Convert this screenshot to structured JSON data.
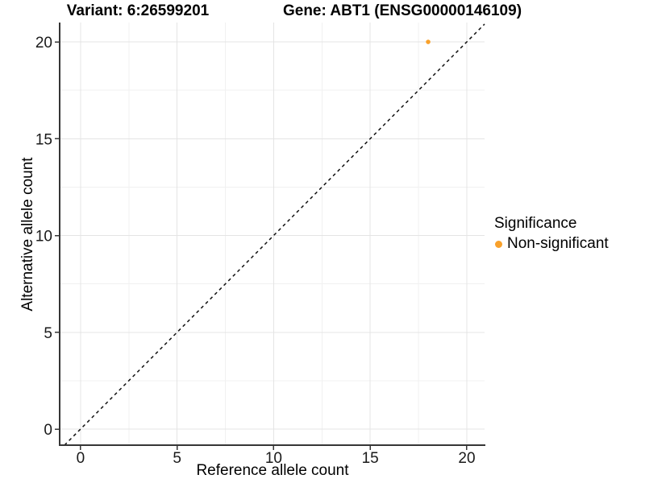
{
  "chart_data": {
    "type": "scatter",
    "title_left": "Variant: 6:26599201",
    "title_right": "Gene: ABT1 (ENSG00000146109)",
    "xlabel": "Reference allele count",
    "ylabel": "Alternative allele count",
    "xlim": [
      -1.08,
      20.92
    ],
    "ylim": [
      -0.83,
      21.0
    ],
    "xticks": [
      0,
      5,
      10,
      15,
      20
    ],
    "yticks": [
      0,
      5,
      10,
      15,
      20
    ],
    "minor_xticks": [
      2.5,
      7.5,
      12.5,
      17.5
    ],
    "minor_yticks": [
      2.5,
      7.5,
      12.5,
      17.5
    ],
    "grid": true,
    "series": [
      {
        "name": "Non-significant",
        "color": "#F9A12B",
        "points": [
          {
            "x": 18,
            "y": 20
          }
        ]
      }
    ],
    "reference_line": {
      "type": "abline",
      "slope": 1,
      "intercept": 0,
      "style": "dashed",
      "color": "#111111"
    },
    "legend": {
      "title": "Significance",
      "position": "right",
      "items": [
        {
          "label": "Non-significant",
          "color": "#F9A12B"
        }
      ]
    },
    "colors": {
      "major_gridline": "#E4E4E4",
      "minor_gridline": "#F1F1F1",
      "axis_line": "#363636",
      "tick_label": "#1a1a1a",
      "background": "#ffffff"
    }
  }
}
